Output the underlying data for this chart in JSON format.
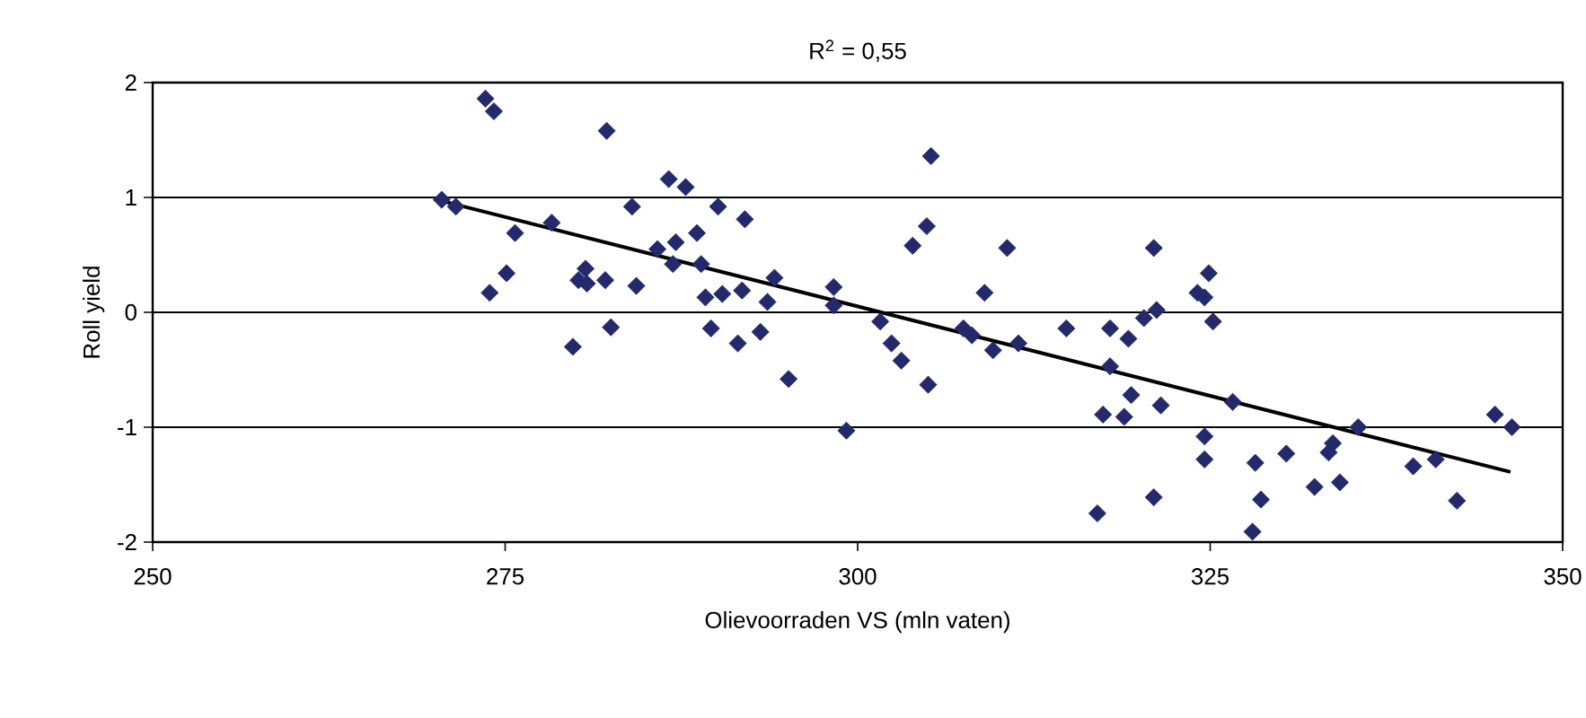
{
  "chart_data": {
    "type": "scatter",
    "title": "R$^{2}$ = 0,55",
    "xlabel": "Olievoorraden VS (mln vaten)",
    "ylabel": "Roll yield",
    "xlim": [
      250,
      350
    ],
    "xticks": [
      250,
      275,
      300,
      325,
      350
    ],
    "ylim": [
      -2,
      2
    ],
    "yticks": [
      -2,
      -1,
      0,
      1,
      2
    ],
    "grid": "y",
    "marker": "diamond",
    "series": [
      {
        "color": "#232a6b",
        "x": [
          270.5,
          271.5,
          273.6,
          274.2,
          282.2,
          275.7,
          278.3,
          275.1,
          273.9,
          279.8,
          280.2,
          280.7,
          280.8,
          282.1,
          282.5,
          284.3,
          284.0,
          286.6,
          287.8,
          290.1,
          292.0,
          288.6,
          285.8,
          287.1,
          286.9,
          288.9,
          289.2,
          290.4,
          291.8,
          293.6,
          294.1,
          289.6,
          291.5,
          293.1,
          295.1,
          298.3,
          298.3,
          299.2,
          305.2,
          304.9,
          303.9,
          310.6,
          309.0,
          301.6,
          302.4,
          303.1,
          305.0,
          307.5,
          308.1,
          309.6,
          311.4,
          314.8,
          317.9,
          319.2,
          317.9,
          319.4,
          317.4,
          318.9,
          321.5,
          317.0,
          321.0,
          321.0,
          320.3,
          321.2,
          324.1,
          324.9,
          324.6,
          325.2,
          324.6,
          324.6,
          326.6,
          328.2,
          328.6,
          328.0,
          330.4,
          332.4,
          334.2,
          333.4,
          333.7,
          335.5,
          339.4,
          341.0,
          342.5,
          345.2,
          346.4
        ],
        "values": [
          0.98,
          0.92,
          1.86,
          1.75,
          1.58,
          0.69,
          0.78,
          0.34,
          0.17,
          -0.3,
          0.28,
          0.38,
          0.25,
          0.28,
          -0.13,
          0.23,
          0.92,
          1.16,
          1.09,
          0.92,
          0.81,
          0.69,
          0.55,
          0.61,
          0.42,
          0.42,
          0.13,
          0.16,
          0.19,
          0.09,
          0.3,
          -0.14,
          -0.27,
          -0.17,
          -0.58,
          0.22,
          0.06,
          -1.03,
          1.36,
          0.75,
          0.58,
          0.56,
          0.17,
          -0.08,
          -0.27,
          -0.42,
          -0.63,
          -0.14,
          -0.2,
          -0.33,
          -0.27,
          -0.14,
          -0.14,
          -0.23,
          -0.47,
          -0.72,
          -0.89,
          -0.91,
          -0.81,
          -1.75,
          -1.61,
          0.56,
          -0.05,
          0.02,
          0.17,
          0.34,
          0.13,
          -0.08,
          -1.08,
          -1.28,
          -0.78,
          -1.31,
          -1.63,
          -1.91,
          -1.23,
          -1.52,
          -1.48,
          -1.22,
          -1.14,
          -1.0,
          -1.34,
          -1.28,
          -1.64,
          -0.89,
          -1.0
        ]
      },
      {
        "type": "line",
        "color": "#000000",
        "marker": "none",
        "line_style": "solid",
        "x": [
          270.5,
          346.3
        ],
        "values": [
          0.97,
          -1.39
        ]
      }
    ]
  }
}
